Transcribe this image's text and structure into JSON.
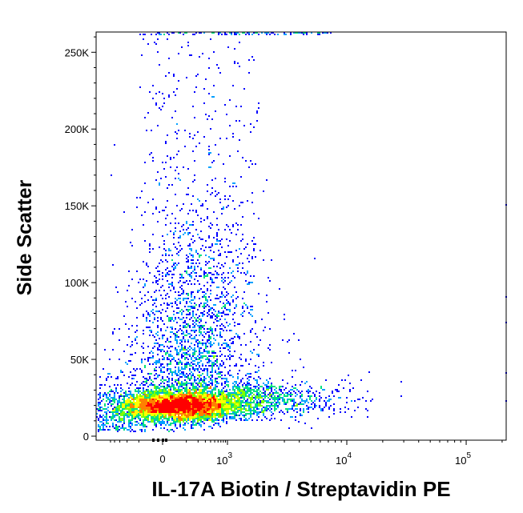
{
  "chart_data": {
    "type": "scatter",
    "subtype": "flow-cytometry-density-dot-plot",
    "title": "",
    "xlabel": "IL-17A Biotin / Streptavidin PE",
    "ylabel": "Side Scatter",
    "x_scale": "biexponential",
    "y_scale": "linear",
    "ylim": [
      0,
      262144
    ],
    "xlim": [
      -700,
      262144
    ],
    "grid": false,
    "legend": "none",
    "x_ticks": [
      {
        "value": 0,
        "label": "0"
      },
      {
        "value": 1000,
        "base": "10",
        "exp": "3"
      },
      {
        "value": 10000,
        "base": "10",
        "exp": "4"
      },
      {
        "value": 100000,
        "base": "10",
        "exp": "5"
      }
    ],
    "y_ticks": [
      {
        "value": 0,
        "label": "0"
      },
      {
        "value": 50000,
        "label": "50K"
      },
      {
        "value": 100000,
        "label": "100K"
      },
      {
        "value": 150000,
        "label": "150K"
      },
      {
        "value": 200000,
        "label": "200K"
      },
      {
        "value": 250000,
        "label": "250K"
      }
    ],
    "populations": [
      {
        "label": "main cluster (high density)",
        "x_center": 150,
        "x_spread": 350,
        "y_center": 20000,
        "y_spread": 8000,
        "density": "high"
      },
      {
        "label": "high side-scatter spread",
        "x_center": 300,
        "x_spread": 600,
        "y_center": 70000,
        "y_spread": 40000,
        "density": "low"
      },
      {
        "label": "PE positive tail",
        "x_center": 5000,
        "x_spread": 6000,
        "y_center": 25000,
        "y_spread": 5000,
        "density": "low"
      }
    ],
    "density_colors": [
      "#0000ff",
      "#00a0ff",
      "#00e080",
      "#80ff00",
      "#ffff00",
      "#ff8000",
      "#ff0000"
    ]
  }
}
